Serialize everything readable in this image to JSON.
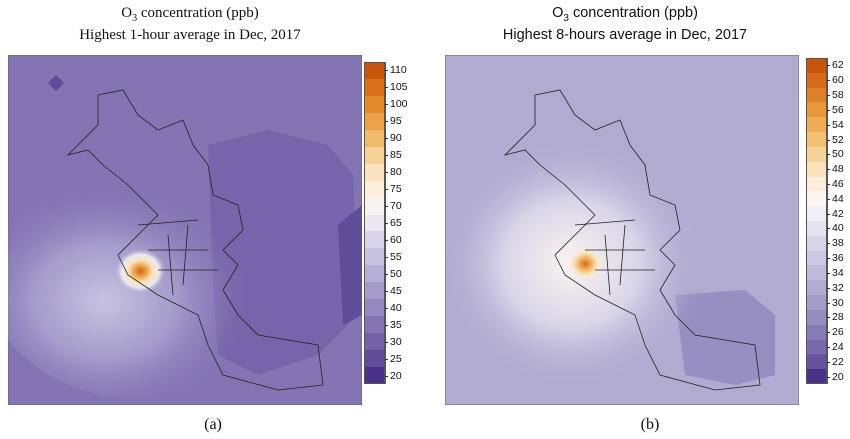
{
  "panels": [
    {
      "title_line1": "O3 concentration (ppb)",
      "title_line2": "Highest 1-hour average in Dec, 2017",
      "caption": "(a)",
      "legend": {
        "labels": [
          "110",
          "105",
          "100",
          "95",
          "90",
          "85",
          "80",
          "75",
          "70",
          "65",
          "60",
          "55",
          "50",
          "45",
          "40",
          "35",
          "30",
          "25",
          "20"
        ],
        "colors": [
          "#c9560e",
          "#d8711a",
          "#e28a2c",
          "#eba34a",
          "#f1bb6e",
          "#f6d198",
          "#fae3bf",
          "#fcefdc",
          "#f7f3f1",
          "#eae7f2",
          "#dad5ea",
          "#c8c3e1",
          "#b6afd6",
          "#a49bcb",
          "#9488c0",
          "#8375b4",
          "#7262a7",
          "#5f4d9a",
          "#4a318a"
        ]
      }
    },
    {
      "title_line1": "O3 concentration (ppb)",
      "title_line2": "Highest 8-hours average in Dec, 2017",
      "caption": "(b)",
      "legend": {
        "labels": [
          "62",
          "60",
          "58",
          "56",
          "54",
          "52",
          "50",
          "48",
          "46",
          "44",
          "42",
          "40",
          "38",
          "36",
          "34",
          "32",
          "30",
          "28",
          "26",
          "24",
          "22",
          "20"
        ],
        "colors": [
          "#c9560e",
          "#d6691a",
          "#df7f27",
          "#e8973c",
          "#eeac56",
          "#f3c075",
          "#f7d399",
          "#fae3bd",
          "#fceedc",
          "#faf5f0",
          "#f2f0f6",
          "#e6e3f0",
          "#d9d5e9",
          "#ccc7e2",
          "#bfb9da",
          "#b1aad1",
          "#a39bc8",
          "#958cbf",
          "#867cb5",
          "#7769aa",
          "#65539d",
          "#4a318a"
        ]
      }
    }
  ]
}
